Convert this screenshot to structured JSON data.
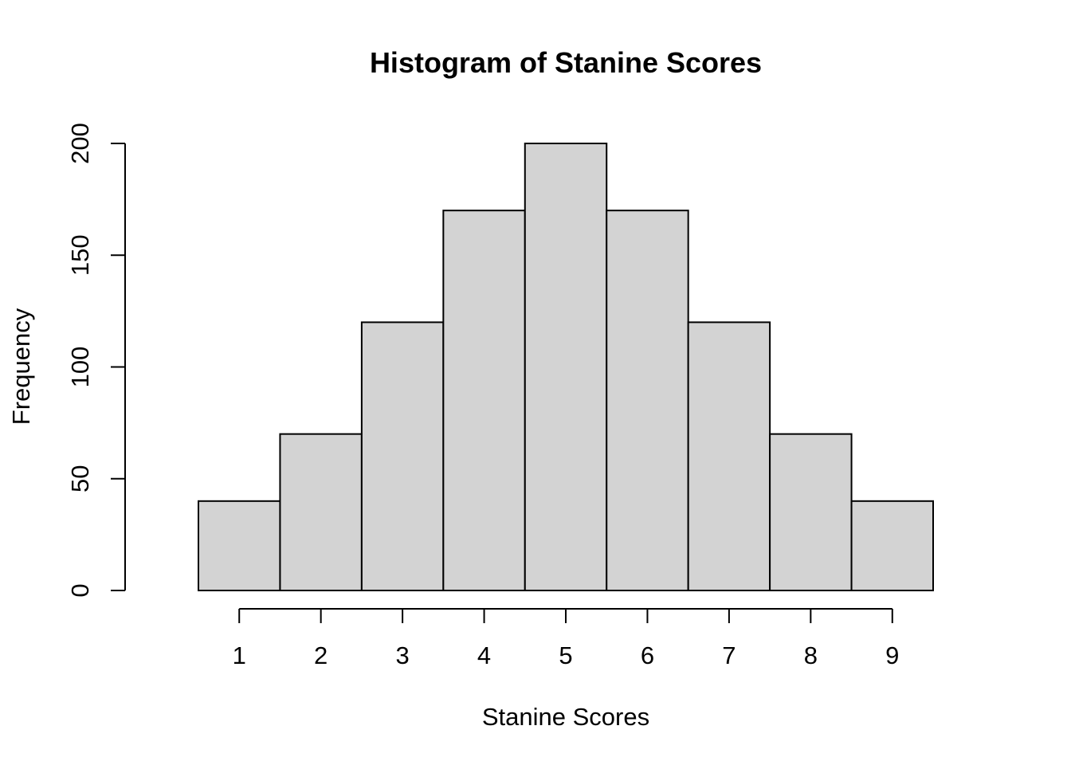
{
  "chart_data": {
    "type": "bar",
    "title": "Histogram of Stanine Scores",
    "xlabel": "Stanine Scores",
    "ylabel": "Frequency",
    "categories": [
      "1",
      "2",
      "3",
      "4",
      "5",
      "6",
      "7",
      "8",
      "9"
    ],
    "x": [
      1,
      2,
      3,
      4,
      5,
      6,
      7,
      8,
      9
    ],
    "values": [
      40,
      70,
      120,
      170,
      200,
      170,
      120,
      70,
      40
    ],
    "bin_width": 1,
    "xlim": [
      0.5,
      9.5
    ],
    "ylim": [
      0,
      200
    ],
    "yticks": [
      0,
      50,
      100,
      150,
      200
    ],
    "xticks": [
      1,
      2,
      3,
      4,
      5,
      6,
      7,
      8,
      9
    ],
    "grid": false,
    "bar_fill": "#d3d3d3",
    "bar_stroke": "#000000"
  }
}
